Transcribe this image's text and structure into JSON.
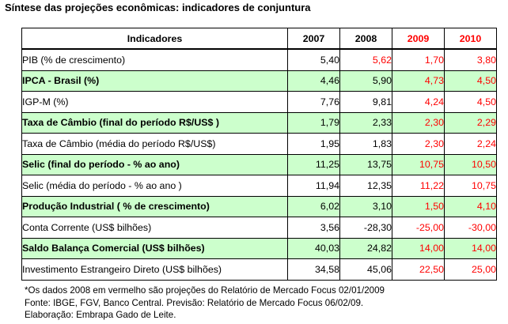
{
  "title": "Síntese das projeções econômicas: indicadores de conjuntura",
  "table": {
    "headers": [
      "Indicadores",
      "2007",
      "2008",
      "2009",
      "2010"
    ],
    "rows": [
      {
        "label": "PIB (% de crescimento)",
        "v2007": "5,40",
        "v2008": "5,62",
        "v2009": "1,70",
        "v2010": "3,80",
        "shaded": false,
        "red2008": true
      },
      {
        "label": "IPCA - Brasil (%)",
        "v2007": "4,46",
        "v2008": "5,90",
        "v2009": "4,73",
        "v2010": "4,50",
        "shaded": true,
        "red2008": false
      },
      {
        "label": "IGP-M (%)",
        "v2007": "7,76",
        "v2008": "9,81",
        "v2009": "4,24",
        "v2010": "4,50",
        "shaded": false,
        "red2008": false
      },
      {
        "label": "Taxa de Câmbio (final do período R$/US$ )",
        "v2007": "1,79",
        "v2008": "2,33",
        "v2009": "2,30",
        "v2010": "2,29",
        "shaded": true,
        "red2008": false
      },
      {
        "label": "Taxa de Câmbio (média do período R$/US$)",
        "v2007": "1,95",
        "v2008": "1,83",
        "v2009": "2,30",
        "v2010": "2,24",
        "shaded": false,
        "red2008": false
      },
      {
        "label": "Selic (final do período - % ao ano)",
        "v2007": "11,25",
        "v2008": "13,75",
        "v2009": "10,75",
        "v2010": "10,50",
        "shaded": true,
        "red2008": false
      },
      {
        "label": "Selic (média do período - % ao ano )",
        "v2007": "11,94",
        "v2008": "12,35",
        "v2009": "11,22",
        "v2010": "10,75",
        "shaded": false,
        "red2008": false
      },
      {
        "label": "Produção Industrial ( % de crescimento)",
        "v2007": "6,02",
        "v2008": "3,10",
        "v2009": "1,50",
        "v2010": "4,10",
        "shaded": true,
        "red2008": false
      },
      {
        "label": "Conta Corrente (US$ bilhões)",
        "v2007": "3,56",
        "v2008": "-28,30",
        "v2009": "-25,00",
        "v2010": "-30,00",
        "shaded": false,
        "red2008": false
      },
      {
        "label": "Saldo Balança Comercial (US$ bilhões)",
        "v2007": "40,03",
        "v2008": "24,82",
        "v2009": "14,00",
        "v2010": "14,00",
        "shaded": true,
        "red2008": false
      },
      {
        "label": "Investimento Estrangeiro Direto (US$ bilhões)",
        "v2007": "34,58",
        "v2008": "45,06",
        "v2009": "22,50",
        "v2010": "25,00",
        "shaded": false,
        "red2008": false
      }
    ]
  },
  "notes": {
    "line1": "*Os dados 2008 em vermelho são projeções do Relatório de Mercado Focus 02/01/2009",
    "line2": "Fonte: IBGE, FGV, Banco Central. Previsão: Relatório de Mercado Focus 06/02/09.",
    "line3": "Elaboração: Embrapa Gado de Leite."
  },
  "colors": {
    "projection_red": "#ff0000",
    "shaded_row": "#ccffcc",
    "border": "#000000"
  }
}
